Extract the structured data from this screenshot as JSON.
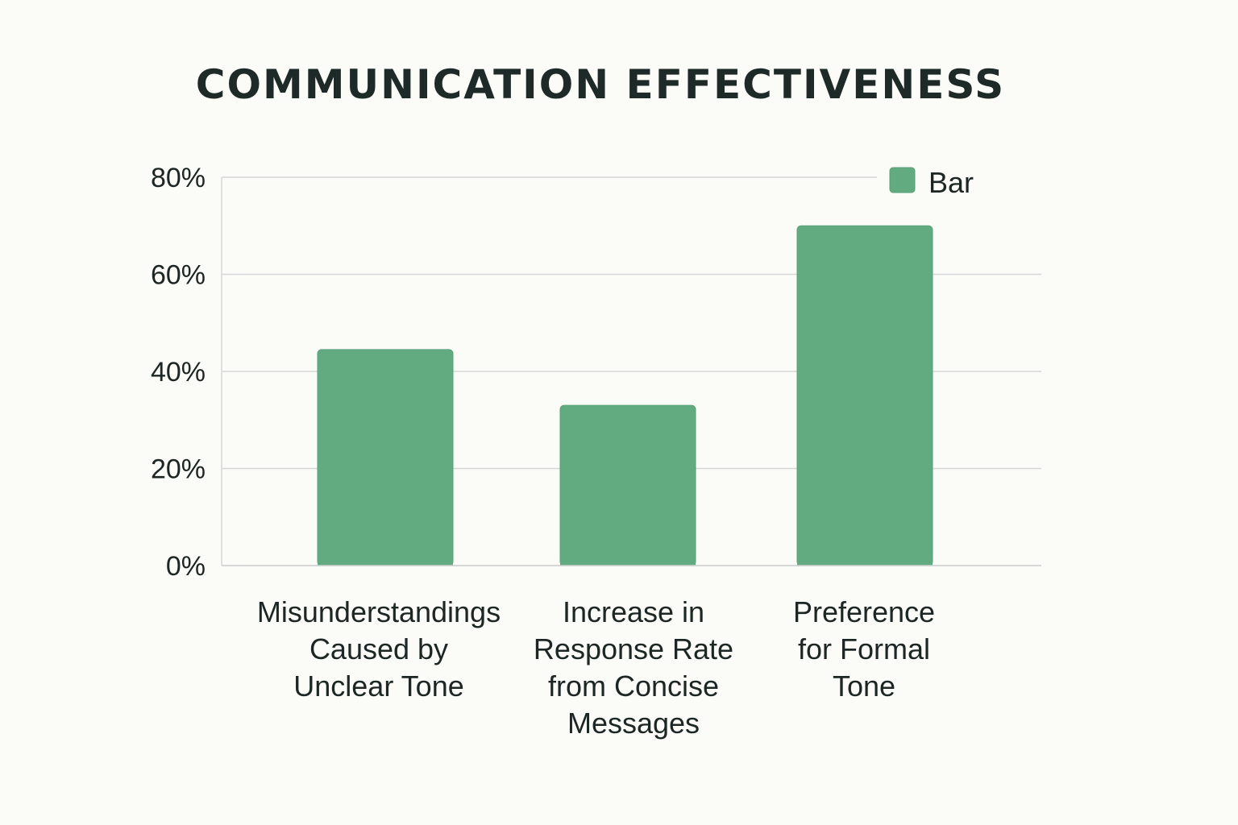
{
  "chart_data": {
    "type": "bar",
    "title": "COMMUNICATION EFFECTIVENESS",
    "categories": [
      [
        "Misunderstandings",
        "Caused by",
        "Unclear Tone"
      ],
      [
        "Increase in",
        "Response Rate",
        "from Concise",
        "Messages"
      ],
      [
        "Preference",
        "for Formal",
        "Tone"
      ]
    ],
    "series": [
      {
        "name": "Bar",
        "values": [
          44.5,
          33,
          70
        ],
        "color": "#62ab80"
      }
    ],
    "ylim": [
      0,
      80
    ],
    "yticks": [
      "0%",
      "20%",
      "40%",
      "60%",
      "80%"
    ],
    "grid": true,
    "legend_placement": "top-right",
    "xlabel": "",
    "ylabel": ""
  }
}
